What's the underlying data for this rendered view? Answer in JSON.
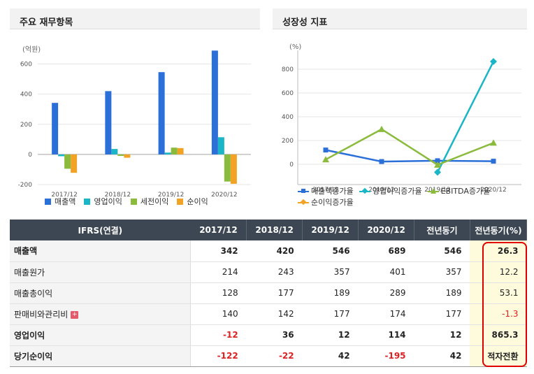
{
  "left_panel": {
    "title": "주요 재무항목",
    "unit": "(억원)"
  },
  "right_panel": {
    "title": "성장성 지표",
    "unit": "(%)"
  },
  "chart_data": [
    {
      "type": "bar",
      "categories": [
        "2017/12",
        "2018/12",
        "2019/12",
        "2020/12"
      ],
      "series": [
        {
          "name": "매출액",
          "color": "#2b6fd8",
          "values": [
            342,
            420,
            546,
            689
          ]
        },
        {
          "name": "영업이익",
          "color": "#1ab5c6",
          "values": [
            -12,
            36,
            12,
            114
          ]
        },
        {
          "name": "세전이익",
          "color": "#8bbb3c",
          "values": [
            -95,
            -10,
            45,
            -180
          ]
        },
        {
          "name": "순이익",
          "color": "#f2a325",
          "values": [
            -122,
            -22,
            42,
            -195
          ]
        }
      ],
      "ylim": [
        -200,
        700
      ],
      "yticks": [
        "600",
        "400",
        "200",
        "0",
        "-200"
      ]
    },
    {
      "type": "line",
      "categories": [
        "2017/12",
        "2018/12",
        "2019/12",
        "2020/12"
      ],
      "series": [
        {
          "name": "매출액증가율",
          "color": "#2b6fd8",
          "marker": "square",
          "values": [
            120,
            23,
            30,
            26
          ]
        },
        {
          "name": "영업이익증가율",
          "color": "#1ab5c6",
          "marker": "diamond",
          "values": [
            null,
            null,
            -67,
            865
          ]
        },
        {
          "name": "EBITDA증가율",
          "color": "#8bbb3c",
          "marker": "triangle",
          "values": [
            40,
            295,
            -5,
            180
          ]
        },
        {
          "name": "순이익증가율",
          "color": "#f2a325",
          "marker": "diamond",
          "values": [
            null,
            null,
            null,
            null
          ]
        }
      ],
      "ylim": [
        -100,
        900
      ],
      "yticks": [
        "800",
        "600",
        "400",
        "200",
        "0"
      ]
    }
  ],
  "table": {
    "header": [
      "IFRS(연결)",
      "2017/12",
      "2018/12",
      "2019/12",
      "2020/12",
      "전년동기",
      "전년동기(%)"
    ],
    "rows": [
      {
        "label": "매출액",
        "bold": true,
        "cells": [
          "342",
          "420",
          "546",
          "689",
          "546",
          "26.3"
        ]
      },
      {
        "label": "매출원가",
        "bold": false,
        "cells": [
          "214",
          "243",
          "357",
          "401",
          "357",
          "12.2"
        ]
      },
      {
        "label": "매출총이익",
        "bold": false,
        "cells": [
          "128",
          "177",
          "189",
          "289",
          "189",
          "53.1"
        ]
      },
      {
        "label": "판매비와관리비",
        "bold": false,
        "expand": "+",
        "cells": [
          "140",
          "142",
          "177",
          "174",
          "177",
          "-1.3"
        ]
      },
      {
        "label": "영업이익",
        "bold": true,
        "cells": [
          "-12",
          "36",
          "12",
          "114",
          "12",
          "865.3"
        ]
      },
      {
        "label": "당기순이익",
        "bold": true,
        "cells": [
          "-122",
          "-22",
          "42",
          "-195",
          "42",
          "적자전환"
        ]
      }
    ]
  }
}
